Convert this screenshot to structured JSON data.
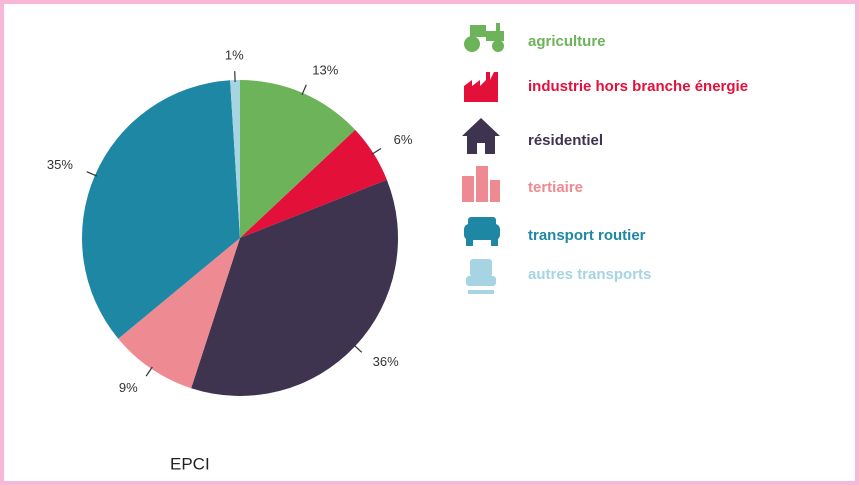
{
  "chart_data": {
    "type": "pie",
    "title": "EPCI",
    "categories": [
      "agriculture",
      "industrie hors branche énergie",
      "résidentiel",
      "tertiaire",
      "transport routier",
      "autres transports"
    ],
    "values": [
      13,
      6,
      36,
      9,
      35,
      1
    ],
    "value_labels": [
      "13%",
      "6%",
      "36%",
      "9%",
      "35%",
      "1%"
    ],
    "colors": [
      "#6db35a",
      "#e3103a",
      "#3e3450",
      "#ee8a91",
      "#1e87a3",
      "#a6d4e2"
    ]
  }
}
